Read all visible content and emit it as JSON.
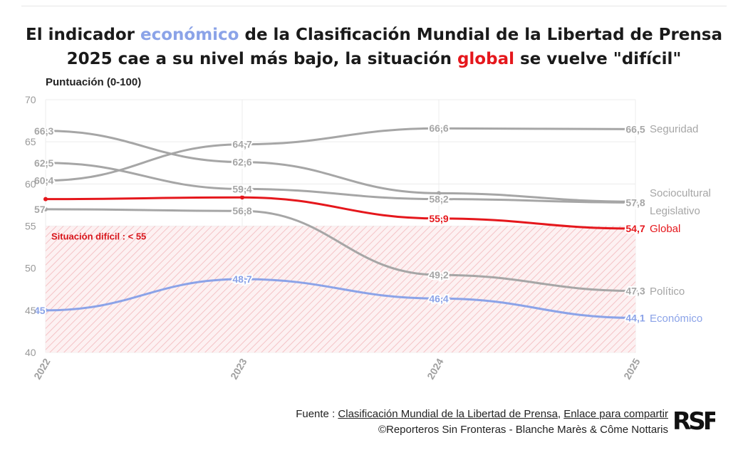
{
  "title": {
    "l1_pre": "El indicador ",
    "l1_hl": "económico",
    "l1_post": " de la Clasificación Mundial de la Libertad de Prensa",
    "l2_pre": "2025 cae a su nivel más bajo, la situación ",
    "l2_hl": "global",
    "l2_post": " se vuelve \"difícil\""
  },
  "footer": {
    "source_prefix": "Fuente : ",
    "source_link": "Clasificación Mundial de la Libertad de Prensa",
    "separator": ", ",
    "share_link": "Enlace para compartir",
    "credit": "©Reporteros Sin Fronteras - Blanche Marès & Côme Nottaris",
    "logo_text": "RSF"
  },
  "colors": {
    "grey": "#a6a6a6",
    "red": "#e5171c",
    "blue": "#8ba3e8",
    "zone": "#f7c9cb",
    "zone_label": "#d8151b"
  },
  "chart_data": {
    "type": "line",
    "title": "El indicador económico de la Clasificación Mundial de la Libertad de Prensa 2025 cae a su nivel más bajo, la situación global se vuelve \"difícil\"",
    "ylabel": "Puntuación (0-100)",
    "xlabel": "",
    "x": [
      "2022",
      "2023",
      "2024",
      "2025"
    ],
    "ylim": [
      40,
      70
    ],
    "yticks": [
      40,
      45,
      50,
      55,
      60,
      65,
      70
    ],
    "zone": {
      "label": "Situación difícil : < 55",
      "from": 40,
      "to": 55
    },
    "series": [
      {
        "name": "Seguridad",
        "values": [
          60.4,
          64.7,
          66.6,
          66.5
        ],
        "labels": [
          "60,4",
          "64,7",
          "66,6",
          "66,5"
        ],
        "color": "grey"
      },
      {
        "name": "Sociocultural",
        "values": [
          66.3,
          62.6,
          58.9,
          57.9
        ],
        "labels": [
          "66,3",
          "62,6",
          "",
          ""
        ],
        "color": "grey"
      },
      {
        "name": "Legislativo",
        "values": [
          62.5,
          59.4,
          58.2,
          57.8
        ],
        "labels": [
          "62,5",
          "59,4",
          "58,2",
          "57,8"
        ],
        "color": "grey"
      },
      {
        "name": "Global",
        "values": [
          58.2,
          58.4,
          55.9,
          54.7
        ],
        "labels": [
          "",
          "",
          "55,9",
          "54,7"
        ],
        "color": "red"
      },
      {
        "name": "Político",
        "values": [
          57,
          56.8,
          49.2,
          47.3
        ],
        "labels": [
          "57",
          "56,8",
          "49,2",
          "47,3"
        ],
        "color": "grey"
      },
      {
        "name": "Económico",
        "values": [
          45,
          48.7,
          46.4,
          44.1
        ],
        "labels": [
          "45",
          "48,7",
          "46,4",
          "44,1"
        ],
        "color": "blue"
      }
    ]
  }
}
